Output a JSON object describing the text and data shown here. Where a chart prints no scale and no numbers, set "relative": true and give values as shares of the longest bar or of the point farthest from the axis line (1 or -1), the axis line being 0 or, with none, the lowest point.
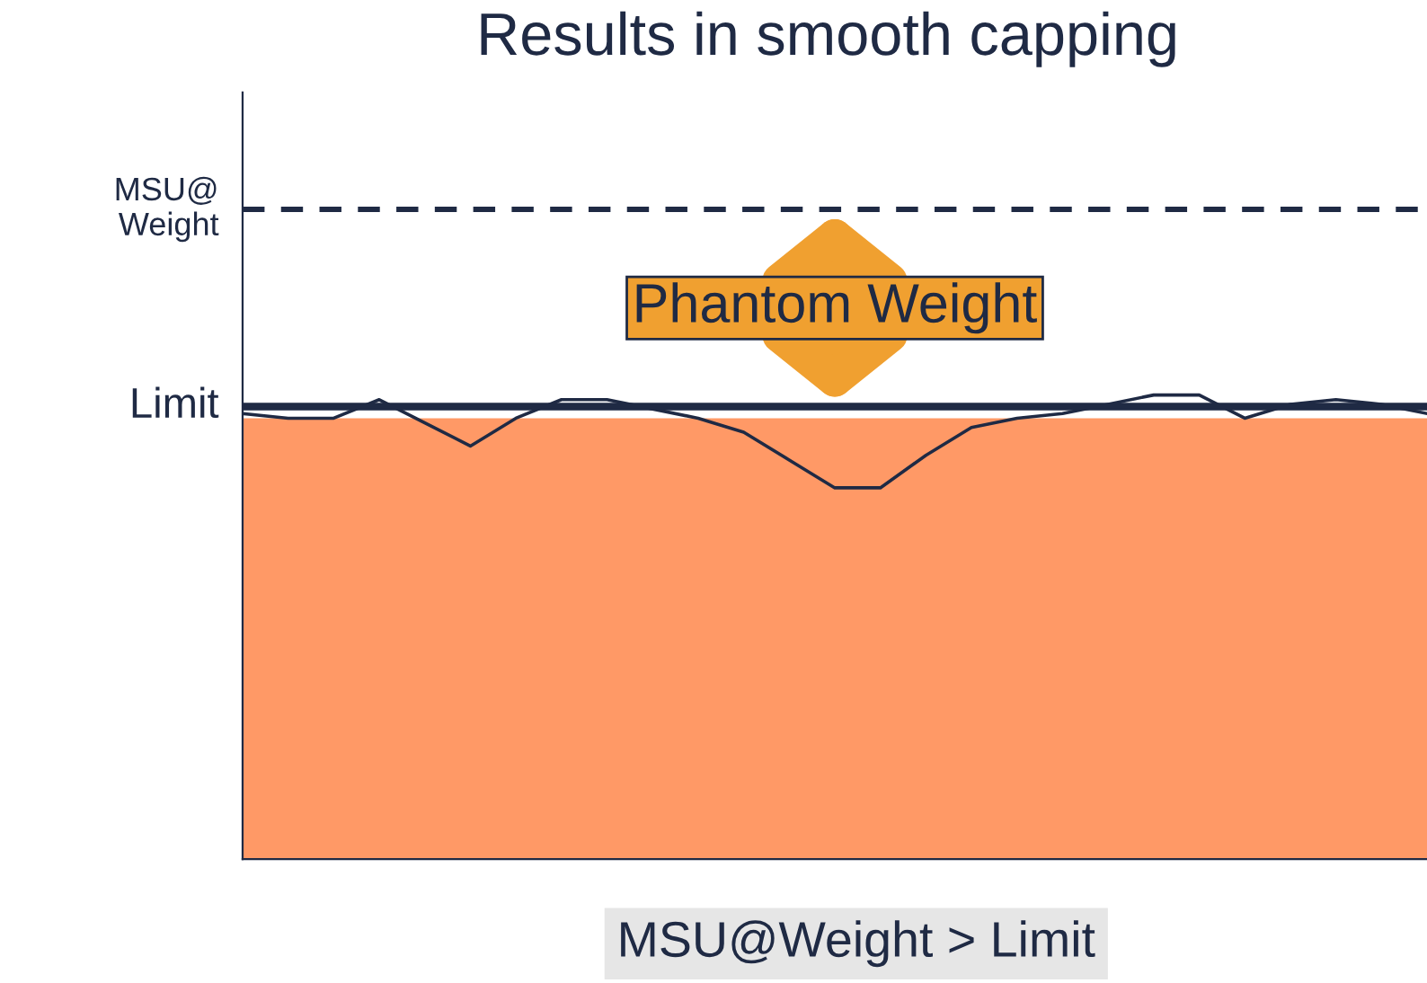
{
  "chart_data": {
    "type": "line",
    "title": "Results in smooth capping",
    "relative": true,
    "categories": [
      null,
      null,
      null,
      null,
      null,
      null,
      null,
      null,
      null,
      null,
      null,
      null,
      null,
      null,
      null,
      null,
      null,
      null,
      null,
      null,
      null,
      null,
      null,
      null,
      null,
      null,
      null
    ],
    "series": [
      {
        "color": "#1f2a44",
        "values": [
          0.96,
          0.95,
          0.95,
          0.99,
          0.94,
          0.89,
          0.95,
          0.99,
          0.99,
          0.97,
          0.95,
          0.92,
          0.86,
          0.8,
          0.8,
          0.87,
          0.93,
          0.95,
          0.96,
          0.98,
          1.0,
          1.0,
          0.95,
          0.98,
          0.99,
          0.98,
          0.96
        ]
      }
    ],
    "bands": [
      {
        "axis": "y",
        "from": 0,
        "to": 0.95,
        "color": "#ff9966"
      }
    ],
    "ref_lines": [
      {
        "axis": "y",
        "value": 0.975,
        "label": "Limit",
        "color": "#1f2a44",
        "line_style": "solid"
      },
      {
        "axis": "y",
        "value": 1.4,
        "label": "MSU@\nWeight",
        "color": "#1f2a44",
        "line_style": "dashed"
      }
    ],
    "annotations": [
      "Phantom Weight",
      "MSU@Weight > Limit"
    ],
    "legend": false
  }
}
